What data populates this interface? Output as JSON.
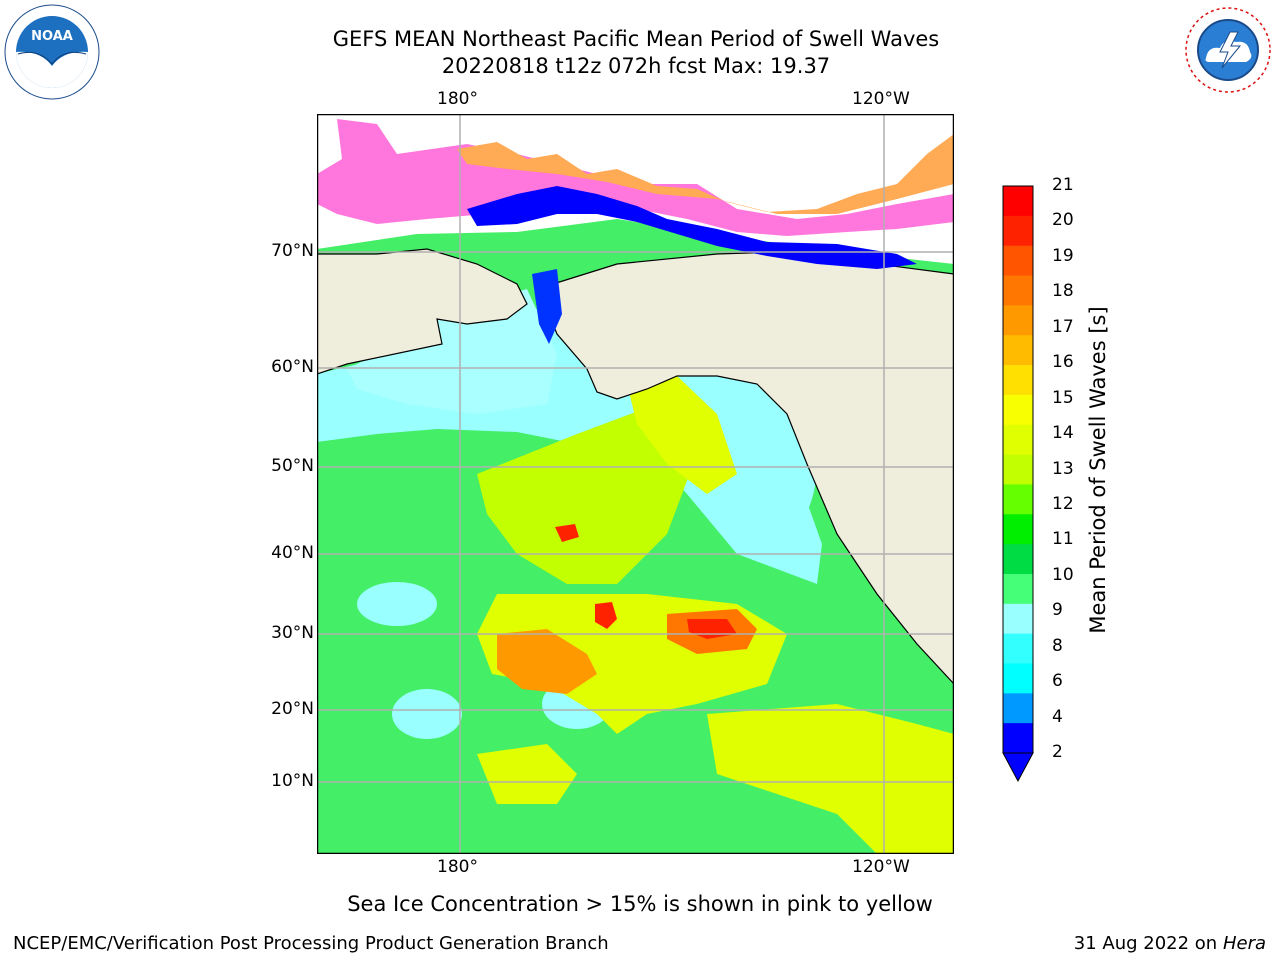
{
  "title": {
    "line1": "GEFS MEAN Northeast Pacific Mean Period of Swell Waves",
    "line2": "20220818 t12z 072h fcst   Max: 19.37"
  },
  "map": {
    "lon_labels": [
      "180°",
      "120°W"
    ],
    "lat_labels": [
      "70°N",
      "60°N",
      "50°N",
      "40°N",
      "30°N",
      "20°N",
      "10°N"
    ],
    "colors": {
      "land": "#efeddc",
      "ice_pink": "#ff77dd",
      "ice_orange": "#ffaa55",
      "low_period_blue": "#0000ff",
      "grid": "#b0b0b0"
    }
  },
  "colorbar": {
    "label": "Mean Period of Swell Waves [s]",
    "ticks": [
      "21",
      "20",
      "19",
      "18",
      "17",
      "16",
      "15",
      "14",
      "13",
      "12",
      "11",
      "10",
      "9",
      "8",
      "6",
      "4",
      "2"
    ],
    "colors_top_to_bottom": [
      "#ff0000",
      "#ff2200",
      "#ff5500",
      "#ff7700",
      "#ff9900",
      "#ffbb00",
      "#ffe000",
      "#f8ff00",
      "#e0ff00",
      "#c2ff00",
      "#66ff00",
      "#00ee00",
      "#00dd44",
      "#44ff77",
      "#99ffff",
      "#33ffff",
      "#00ffff",
      "#0099ff",
      "#0000ff"
    ],
    "extend": "min"
  },
  "note": "Sea Ice Concentration > 15% is shown in pink to yellow",
  "footer": {
    "left": "NCEP/EMC/Verification Post Processing Product Generation Branch",
    "date": "31 Aug 2022 on",
    "machine": "Hera"
  },
  "logos": {
    "left": {
      "text": "NOAA",
      "icon": "noaa-logo-icon"
    },
    "right": {
      "text": "NATIONAL WEATHER SERVICE",
      "icon": "nws-logo-icon"
    }
  }
}
